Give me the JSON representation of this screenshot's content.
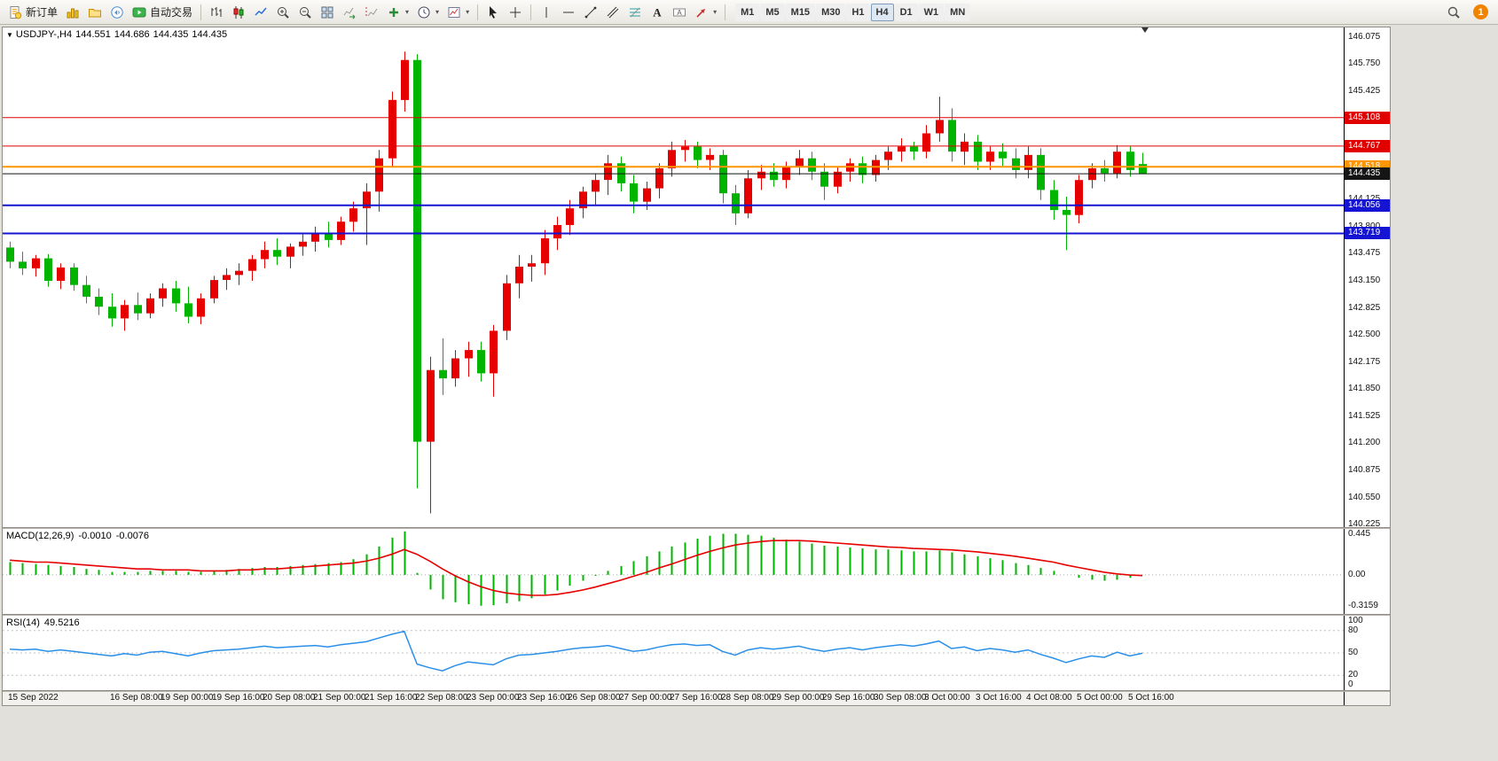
{
  "toolbar": {
    "new_order_label": "新订单",
    "autotrading_label": "自动交易",
    "timeframes": [
      "M1",
      "M5",
      "M15",
      "M30",
      "H1",
      "H4",
      "D1",
      "W1",
      "MN"
    ],
    "active_timeframe": "H4",
    "notification_count": "1"
  },
  "quote": {
    "symbol": "USDJPY-,H4",
    "open": "144.551",
    "high": "144.686",
    "low": "144.435",
    "close": "144.435"
  },
  "price_axis": {
    "ticks": [
      "146.075",
      "145.750",
      "145.425",
      "145.100",
      "144.775",
      "144.450",
      "144.125",
      "143.800",
      "143.475",
      "143.150",
      "142.825",
      "142.500",
      "142.175",
      "141.850",
      "141.525",
      "141.200",
      "140.875",
      "140.550",
      "140.225"
    ]
  },
  "hlines": [
    {
      "price": 145.108,
      "label": "145.108",
      "color": "#e00000",
      "width": 1
    },
    {
      "price": 144.767,
      "label": "144.767",
      "color": "#e00000",
      "width": 1
    },
    {
      "price": 144.518,
      "label": "144.518",
      "color": "#ff9500",
      "width": 2
    },
    {
      "price": 144.435,
      "label": "144.435",
      "color": "#151515",
      "width": 1
    },
    {
      "price": 144.056,
      "label": "144.056",
      "color": "#1414d2",
      "width": 2
    },
    {
      "price": 143.719,
      "label": "143.719",
      "color": "#1414d2",
      "width": 2
    }
  ],
  "indicators": {
    "macd": {
      "label": "MACD(12,26,9)",
      "value_main": "-0.0010",
      "value_signal": "-0.0076",
      "scale": [
        "0.445",
        "0.00",
        "-0.3159"
      ]
    },
    "rsi": {
      "label": "RSI(14)",
      "value": "49.5216",
      "scale": [
        "100",
        "80",
        "50",
        "20",
        "0"
      ]
    }
  },
  "chart_data": {
    "type": "candlestick",
    "symbol": "USDJPY-",
    "timeframe": "H4",
    "ylim": [
      140.195,
      146.19
    ],
    "up_color": "#e60000",
    "down_color": "#00b400",
    "bars": 90,
    "x_labels": [
      {
        "bar": 0,
        "text": "15 Sep 2022"
      },
      {
        "bar": 8,
        "text": "16 Sep 08:00"
      },
      {
        "bar": 12,
        "text": "19 Sep 00:00"
      },
      {
        "bar": 16,
        "text": "19 Sep 16:00"
      },
      {
        "bar": 20,
        "text": "20 Sep 08:00"
      },
      {
        "bar": 24,
        "text": "21 Sep 00:00"
      },
      {
        "bar": 28,
        "text": "21 Sep 16:00"
      },
      {
        "bar": 32,
        "text": "22 Sep 08:00"
      },
      {
        "bar": 36,
        "text": "23 Sep 00:00"
      },
      {
        "bar": 40,
        "text": "23 Sep 16:00"
      },
      {
        "bar": 44,
        "text": "26 Sep 08:00"
      },
      {
        "bar": 48,
        "text": "27 Sep 00:00"
      },
      {
        "bar": 52,
        "text": "27 Sep 16:00"
      },
      {
        "bar": 56,
        "text": "28 Sep 08:00"
      },
      {
        "bar": 60,
        "text": "29 Sep 00:00"
      },
      {
        "bar": 64,
        "text": "29 Sep 16:00"
      },
      {
        "bar": 68,
        "text": "30 Sep 08:00"
      },
      {
        "bar": 72,
        "text": "3 Oct 00:00"
      },
      {
        "bar": 76,
        "text": "3 Oct 16:00"
      },
      {
        "bar": 80,
        "text": "4 Oct 08:00"
      },
      {
        "bar": 84,
        "text": "5 Oct 00:00"
      },
      {
        "bar": 88,
        "text": "5 Oct 16:00"
      }
    ],
    "ohlc": [
      [
        143.55,
        143.62,
        143.3,
        143.38
      ],
      [
        143.38,
        143.5,
        143.22,
        143.3
      ],
      [
        143.3,
        143.46,
        143.2,
        143.42
      ],
      [
        143.42,
        143.47,
        143.08,
        143.15
      ],
      [
        143.15,
        143.36,
        143.05,
        143.31
      ],
      [
        143.31,
        143.36,
        143.03,
        143.1
      ],
      [
        143.1,
        143.21,
        142.88,
        142.96
      ],
      [
        142.96,
        143.06,
        142.74,
        142.84
      ],
      [
        142.84,
        143.0,
        142.6,
        142.7
      ],
      [
        142.7,
        142.92,
        142.55,
        142.86
      ],
      [
        142.86,
        143.01,
        142.68,
        142.76
      ],
      [
        142.76,
        143.0,
        142.7,
        142.94
      ],
      [
        142.94,
        143.12,
        142.84,
        143.06
      ],
      [
        143.06,
        143.15,
        142.78,
        142.88
      ],
      [
        142.88,
        143.08,
        142.64,
        142.72
      ],
      [
        142.72,
        143.0,
        142.63,
        142.94
      ],
      [
        142.94,
        143.21,
        142.88,
        143.16
      ],
      [
        143.16,
        143.3,
        143.04,
        143.22
      ],
      [
        143.22,
        143.36,
        143.1,
        143.27
      ],
      [
        143.27,
        143.46,
        143.15,
        143.41
      ],
      [
        143.41,
        143.62,
        143.3,
        143.52
      ],
      [
        143.52,
        143.66,
        143.34,
        143.44
      ],
      [
        143.44,
        143.6,
        143.3,
        143.56
      ],
      [
        143.56,
        143.71,
        143.45,
        143.62
      ],
      [
        143.62,
        143.8,
        143.5,
        143.71
      ],
      [
        143.71,
        143.86,
        143.55,
        143.64
      ],
      [
        143.64,
        143.92,
        143.58,
        143.86
      ],
      [
        143.86,
        144.1,
        143.74,
        144.02
      ],
      [
        144.02,
        144.32,
        143.58,
        144.22
      ],
      [
        144.22,
        144.72,
        143.98,
        144.62
      ],
      [
        144.62,
        145.42,
        144.52,
        145.32
      ],
      [
        145.32,
        145.9,
        145.18,
        145.8
      ],
      [
        145.8,
        145.87,
        140.66,
        141.22
      ],
      [
        141.22,
        142.24,
        140.36,
        142.08
      ],
      [
        142.08,
        142.46,
        141.78,
        141.98
      ],
      [
        141.98,
        142.32,
        141.88,
        142.22
      ],
      [
        142.22,
        142.42,
        142.0,
        142.32
      ],
      [
        142.32,
        142.42,
        141.94,
        142.04
      ],
      [
        142.04,
        142.62,
        141.76,
        142.55
      ],
      [
        142.55,
        143.22,
        142.44,
        143.12
      ],
      [
        143.12,
        143.46,
        142.94,
        143.32
      ],
      [
        143.32,
        143.46,
        143.14,
        143.36
      ],
      [
        143.36,
        143.76,
        143.22,
        143.66
      ],
      [
        143.66,
        143.92,
        143.52,
        143.82
      ],
      [
        143.82,
        144.12,
        143.7,
        144.02
      ],
      [
        144.02,
        144.28,
        143.9,
        144.22
      ],
      [
        144.22,
        144.44,
        144.06,
        144.36
      ],
      [
        144.36,
        144.66,
        144.18,
        144.56
      ],
      [
        144.56,
        144.64,
        144.22,
        144.32
      ],
      [
        144.32,
        144.42,
        143.96,
        144.1
      ],
      [
        144.1,
        144.34,
        144.0,
        144.26
      ],
      [
        144.26,
        144.56,
        144.14,
        144.5
      ],
      [
        144.5,
        144.82,
        144.4,
        144.72
      ],
      [
        144.72,
        144.84,
        144.58,
        144.76
      ],
      [
        144.76,
        144.82,
        144.5,
        144.6
      ],
      [
        144.6,
        144.74,
        144.48,
        144.66
      ],
      [
        144.66,
        144.72,
        144.08,
        144.2
      ],
      [
        144.2,
        144.3,
        143.82,
        143.96
      ],
      [
        143.96,
        144.48,
        143.9,
        144.38
      ],
      [
        144.38,
        144.54,
        144.24,
        144.46
      ],
      [
        144.46,
        144.56,
        144.28,
        144.36
      ],
      [
        144.36,
        144.58,
        144.26,
        144.52
      ],
      [
        144.52,
        144.72,
        144.42,
        144.62
      ],
      [
        144.62,
        144.7,
        144.36,
        144.46
      ],
      [
        144.46,
        144.56,
        144.12,
        144.28
      ],
      [
        144.28,
        144.52,
        144.2,
        144.46
      ],
      [
        144.46,
        144.62,
        144.34,
        144.56
      ],
      [
        144.56,
        144.64,
        144.32,
        144.42
      ],
      [
        144.42,
        144.66,
        144.34,
        144.6
      ],
      [
        144.6,
        144.76,
        144.48,
        144.7
      ],
      [
        144.7,
        144.86,
        144.58,
        144.76
      ],
      [
        144.76,
        144.82,
        144.6,
        144.7
      ],
      [
        144.7,
        145.02,
        144.62,
        144.92
      ],
      [
        144.92,
        145.36,
        144.82,
        145.08
      ],
      [
        145.08,
        145.22,
        144.58,
        144.7
      ],
      [
        144.7,
        144.92,
        144.54,
        144.82
      ],
      [
        144.82,
        144.9,
        144.48,
        144.58
      ],
      [
        144.58,
        144.76,
        144.48,
        144.7
      ],
      [
        144.7,
        144.8,
        144.52,
        144.62
      ],
      [
        144.62,
        144.74,
        144.38,
        144.48
      ],
      [
        144.48,
        144.76,
        144.38,
        144.66
      ],
      [
        144.66,
        144.74,
        144.12,
        144.24
      ],
      [
        144.24,
        144.36,
        143.88,
        144.0
      ],
      [
        144.0,
        144.16,
        143.52,
        143.94
      ],
      [
        143.94,
        144.42,
        143.84,
        144.36
      ],
      [
        144.36,
        144.56,
        144.26,
        144.5
      ],
      [
        144.5,
        144.6,
        144.34,
        144.44
      ],
      [
        144.44,
        144.78,
        144.38,
        144.7
      ],
      [
        144.7,
        144.76,
        144.4,
        144.48
      ],
      [
        144.551,
        144.686,
        144.435,
        144.435
      ]
    ],
    "macd": {
      "params": [
        12,
        26,
        9
      ],
      "range": [
        -0.4,
        0.47
      ],
      "histogram_color": "#00b400",
      "signal_color": "#e60000",
      "histogram": [
        0.13,
        0.12,
        0.11,
        0.1,
        0.09,
        0.08,
        0.06,
        0.05,
        0.03,
        0.03,
        0.03,
        0.04,
        0.04,
        0.04,
        0.03,
        0.03,
        0.04,
        0.05,
        0.06,
        0.07,
        0.08,
        0.08,
        0.09,
        0.1,
        0.11,
        0.12,
        0.13,
        0.16,
        0.21,
        0.29,
        0.38,
        0.445,
        0.02,
        -0.15,
        -0.25,
        -0.28,
        -0.3,
        -0.3159,
        -0.31,
        -0.29,
        -0.27,
        -0.24,
        -0.2,
        -0.16,
        -0.11,
        -0.06,
        -0.01,
        0.04,
        0.09,
        0.14,
        0.19,
        0.24,
        0.29,
        0.33,
        0.37,
        0.4,
        0.42,
        0.42,
        0.41,
        0.4,
        0.38,
        0.36,
        0.34,
        0.32,
        0.3,
        0.29,
        0.28,
        0.27,
        0.26,
        0.26,
        0.25,
        0.24,
        0.24,
        0.25,
        0.23,
        0.21,
        0.19,
        0.17,
        0.15,
        0.12,
        0.1,
        0.07,
        0.04,
        0.0,
        -0.03,
        -0.05,
        -0.06,
        -0.05,
        -0.03,
        -0.001
      ],
      "signal": [
        0.15,
        0.14,
        0.13,
        0.13,
        0.12,
        0.11,
        0.1,
        0.09,
        0.08,
        0.07,
        0.06,
        0.06,
        0.05,
        0.05,
        0.05,
        0.04,
        0.04,
        0.04,
        0.05,
        0.05,
        0.06,
        0.06,
        0.07,
        0.08,
        0.09,
        0.1,
        0.11,
        0.12,
        0.14,
        0.17,
        0.21,
        0.26,
        0.21,
        0.14,
        0.06,
        -0.01,
        -0.07,
        -0.12,
        -0.16,
        -0.185,
        -0.2,
        -0.21,
        -0.21,
        -0.2,
        -0.18,
        -0.155,
        -0.125,
        -0.09,
        -0.055,
        -0.015,
        0.025,
        0.07,
        0.11,
        0.155,
        0.2,
        0.24,
        0.275,
        0.305,
        0.325,
        0.34,
        0.35,
        0.35,
        0.35,
        0.345,
        0.335,
        0.325,
        0.315,
        0.305,
        0.295,
        0.285,
        0.28,
        0.27,
        0.265,
        0.26,
        0.255,
        0.245,
        0.235,
        0.22,
        0.205,
        0.19,
        0.17,
        0.15,
        0.13,
        0.1,
        0.075,
        0.05,
        0.027,
        0.01,
        -0.002,
        -0.0076
      ]
    },
    "rsi": {
      "params": [
        14
      ],
      "range": [
        0,
        100
      ],
      "levels": [
        80,
        50,
        20
      ],
      "color": "#2a8fe8",
      "level_color": "#c0c0c0",
      "values": [
        55,
        54,
        55,
        52,
        54,
        52,
        50,
        48,
        46,
        49,
        47,
        51,
        52,
        49,
        46,
        50,
        53,
        54,
        55,
        57,
        59,
        57,
        58,
        59,
        60,
        58,
        61,
        63,
        65,
        70,
        75,
        79,
        35,
        30,
        26,
        33,
        38,
        36,
        34,
        42,
        47,
        48,
        50,
        52,
        55,
        57,
        58,
        60,
        56,
        52,
        54,
        58,
        61,
        62,
        60,
        61,
        52,
        47,
        54,
        57,
        55,
        57,
        59,
        55,
        52,
        55,
        57,
        54,
        57,
        59,
        61,
        59,
        62,
        66,
        56,
        58,
        53,
        56,
        54,
        51,
        54,
        48,
        43,
        37,
        42,
        46,
        44,
        51,
        46,
        49.5216
      ]
    }
  }
}
